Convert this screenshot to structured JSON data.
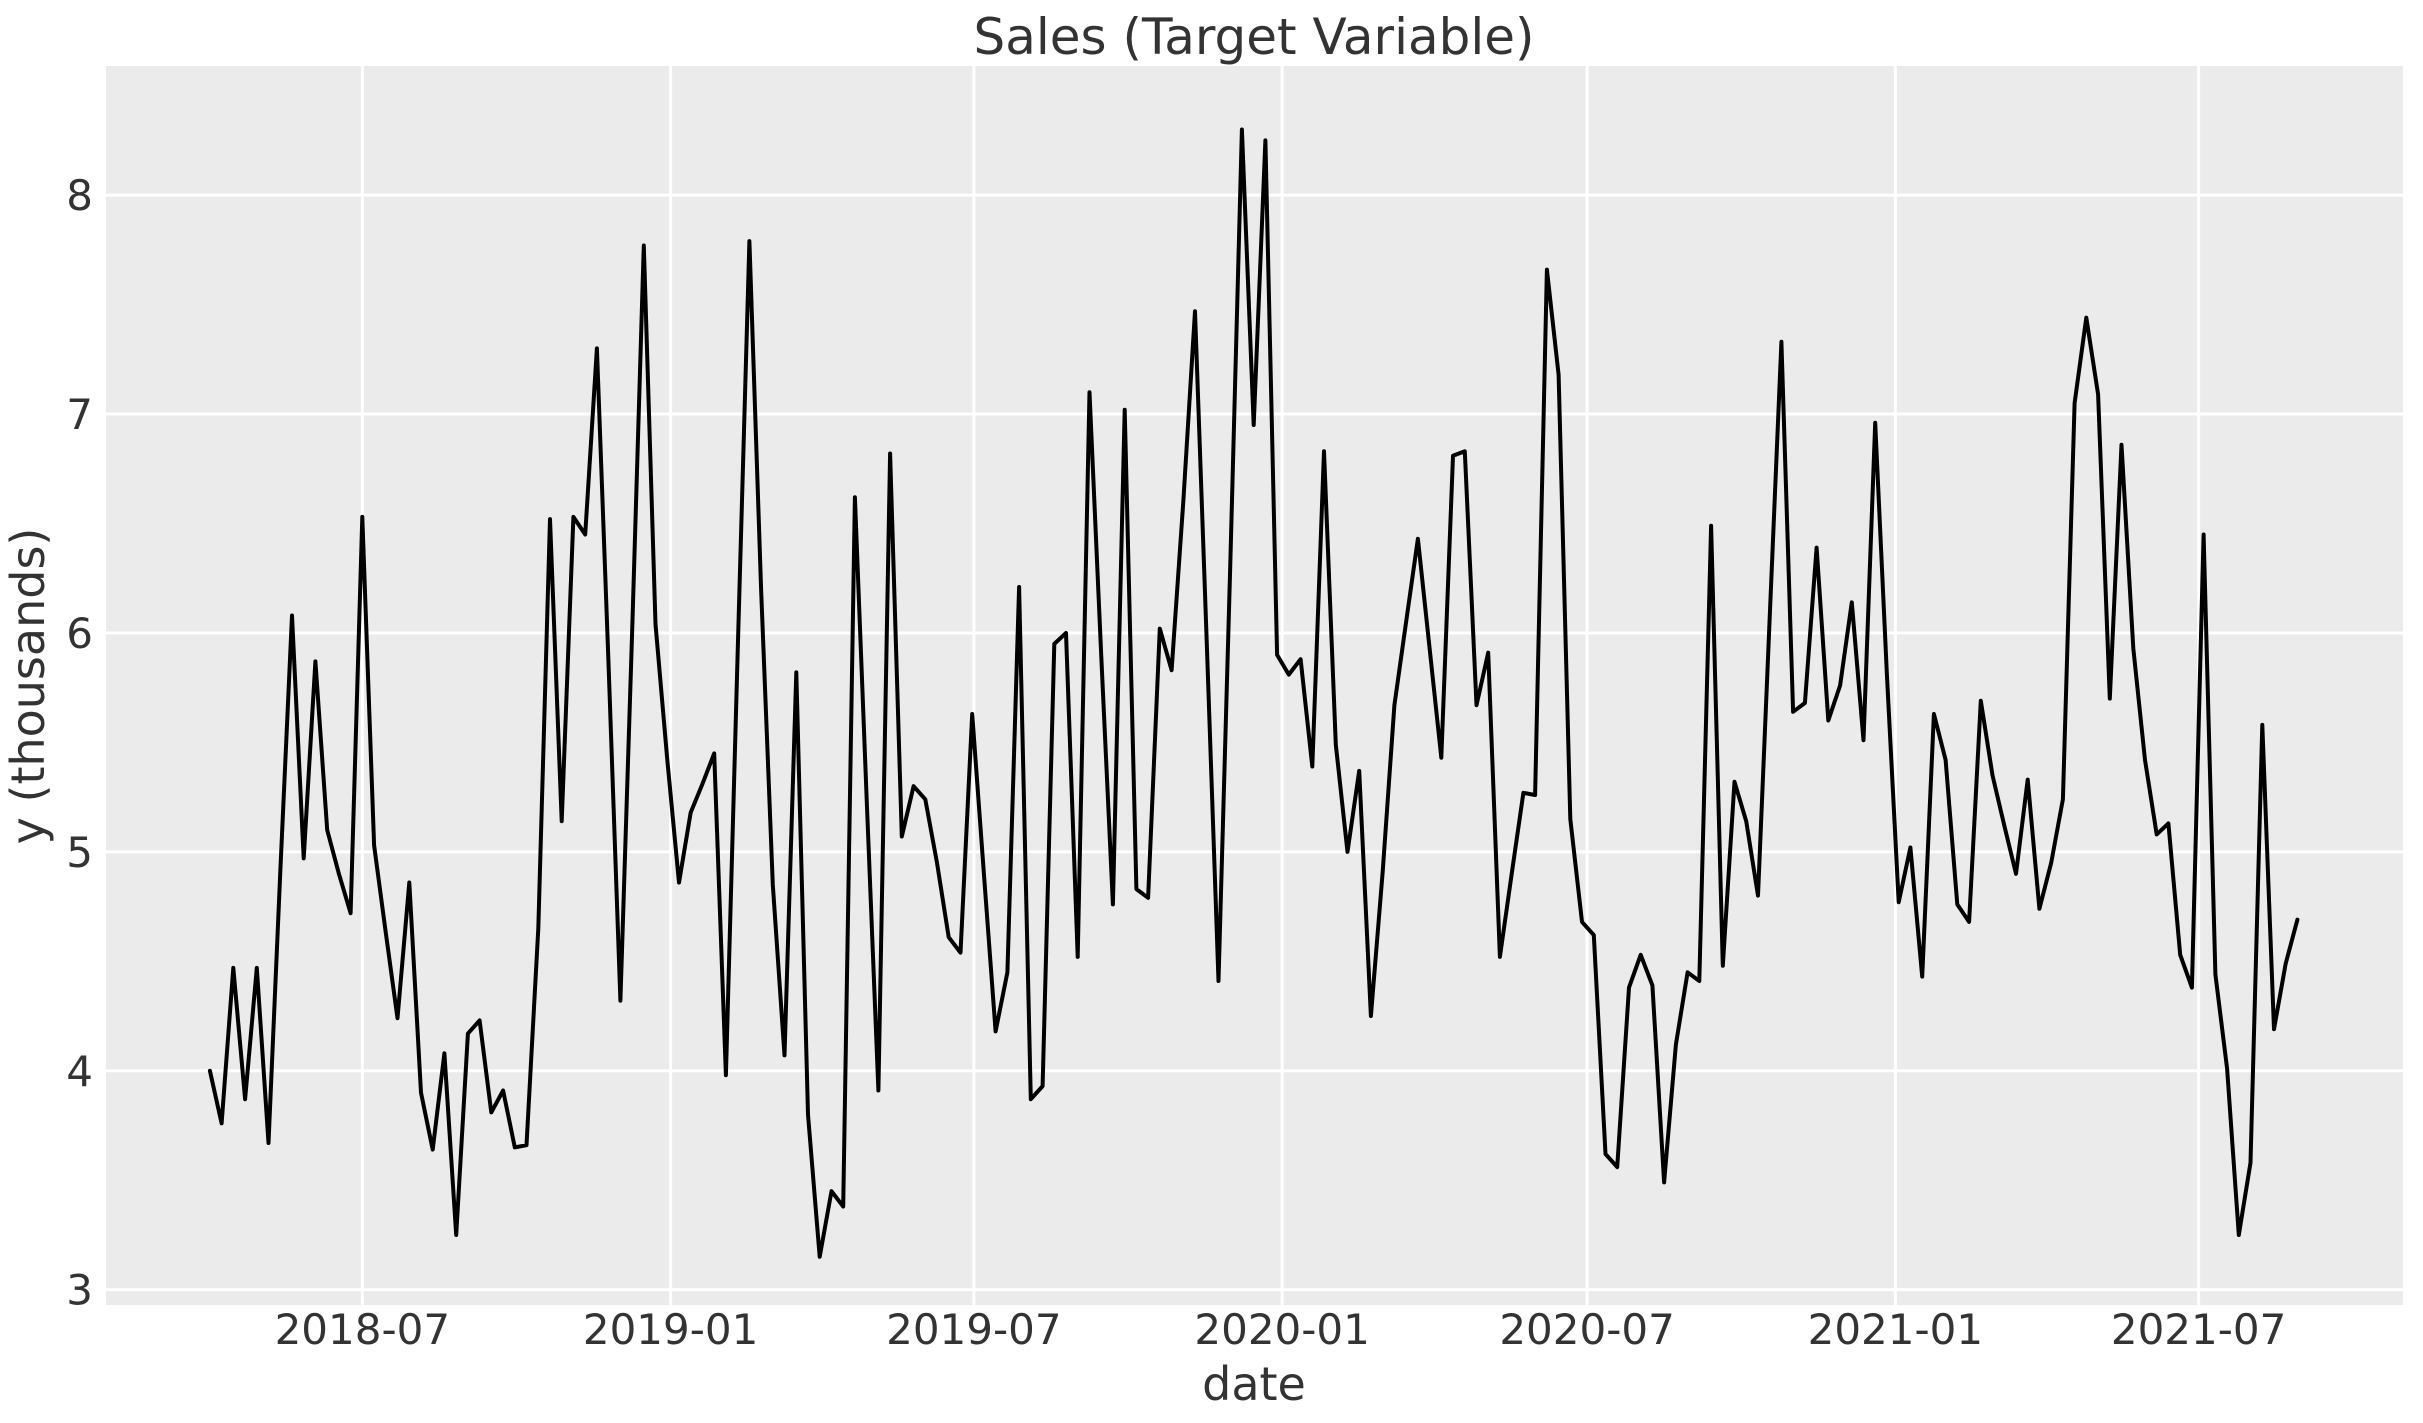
{
  "chart_data": {
    "type": "line",
    "title": "Sales (Target Variable)",
    "xlabel": "date",
    "ylabel": "y (thousands)",
    "grid": true,
    "legend": false,
    "xlim": [
      "2018-01-29",
      "2021-10-31"
    ],
    "ylim": [
      2.93,
      8.59
    ],
    "y_ticks": [
      3,
      4,
      5,
      6,
      7,
      8
    ],
    "x_ticks": [
      {
        "label": "2018-07",
        "date": "2018-07-01"
      },
      {
        "label": "2019-01",
        "date": "2019-01-01"
      },
      {
        "label": "2019-07",
        "date": "2019-07-01"
      },
      {
        "label": "2020-01",
        "date": "2020-01-01"
      },
      {
        "label": "2020-07",
        "date": "2020-07-01"
      },
      {
        "label": "2021-01",
        "date": "2021-01-01"
      },
      {
        "label": "2021-07",
        "date": "2021-07-01"
      }
    ],
    "colors": {
      "figure_bg": "#ffffff",
      "plot_bg": "#ebebeb",
      "grid": "#ffffff",
      "text": "#333333",
      "line": "#000000"
    },
    "series": [
      {
        "name": "sales",
        "frequency": "weekly",
        "dates": [
          "2018-04-01",
          "2018-04-08",
          "2018-04-15",
          "2018-04-22",
          "2018-04-29",
          "2018-05-06",
          "2018-05-13",
          "2018-05-20",
          "2018-05-27",
          "2018-06-03",
          "2018-06-10",
          "2018-06-17",
          "2018-06-24",
          "2018-07-01",
          "2018-07-08",
          "2018-07-15",
          "2018-07-22",
          "2018-07-29",
          "2018-08-05",
          "2018-08-12",
          "2018-08-19",
          "2018-08-26",
          "2018-09-02",
          "2018-09-09",
          "2018-09-16",
          "2018-09-23",
          "2018-09-30",
          "2018-10-07",
          "2018-10-14",
          "2018-10-21",
          "2018-10-28",
          "2018-11-04",
          "2018-11-11",
          "2018-11-18",
          "2018-11-25",
          "2018-12-02",
          "2018-12-09",
          "2018-12-16",
          "2018-12-23",
          "2018-12-30",
          "2019-01-06",
          "2019-01-13",
          "2019-01-20",
          "2019-01-27",
          "2019-02-03",
          "2019-02-10",
          "2019-02-17",
          "2019-02-24",
          "2019-03-03",
          "2019-03-10",
          "2019-03-17",
          "2019-03-24",
          "2019-03-31",
          "2019-04-07",
          "2019-04-14",
          "2019-04-21",
          "2019-04-28",
          "2019-05-05",
          "2019-05-12",
          "2019-05-19",
          "2019-05-26",
          "2019-06-02",
          "2019-06-09",
          "2019-06-16",
          "2019-06-23",
          "2019-06-30",
          "2019-07-07",
          "2019-07-14",
          "2019-07-21",
          "2019-07-28",
          "2019-08-04",
          "2019-08-11",
          "2019-08-18",
          "2019-08-25",
          "2019-09-01",
          "2019-09-08",
          "2019-09-15",
          "2019-09-22",
          "2019-09-29",
          "2019-10-06",
          "2019-10-13",
          "2019-10-20",
          "2019-10-27",
          "2019-11-03",
          "2019-11-10",
          "2019-11-17",
          "2019-11-24",
          "2019-12-01",
          "2019-12-08",
          "2019-12-15",
          "2019-12-22",
          "2019-12-29",
          "2020-01-05",
          "2020-01-12",
          "2020-01-19",
          "2020-01-26",
          "2020-02-02",
          "2020-02-09",
          "2020-02-16",
          "2020-02-23",
          "2020-03-01",
          "2020-03-08",
          "2020-03-15",
          "2020-03-22",
          "2020-03-29",
          "2020-04-05",
          "2020-04-12",
          "2020-04-19",
          "2020-04-26",
          "2020-05-03",
          "2020-05-10",
          "2020-05-17",
          "2020-05-24",
          "2020-05-31",
          "2020-06-07",
          "2020-06-14",
          "2020-06-21",
          "2020-06-28",
          "2020-07-05",
          "2020-07-12",
          "2020-07-19",
          "2020-07-26",
          "2020-08-02",
          "2020-08-09",
          "2020-08-16",
          "2020-08-23",
          "2020-08-30",
          "2020-09-06",
          "2020-09-13",
          "2020-09-20",
          "2020-09-27",
          "2020-10-04",
          "2020-10-11",
          "2020-10-18",
          "2020-10-25",
          "2020-11-01",
          "2020-11-08",
          "2020-11-15",
          "2020-11-22",
          "2020-11-29",
          "2020-12-06",
          "2020-12-13",
          "2020-12-20",
          "2020-12-27",
          "2021-01-03",
          "2021-01-10",
          "2021-01-17",
          "2021-01-24",
          "2021-01-31",
          "2021-02-07",
          "2021-02-14",
          "2021-02-21",
          "2021-02-28",
          "2021-03-07",
          "2021-03-14",
          "2021-03-21",
          "2021-03-28",
          "2021-04-04",
          "2021-04-11",
          "2021-04-18",
          "2021-04-25",
          "2021-05-02",
          "2021-05-09",
          "2021-05-16",
          "2021-05-23",
          "2021-05-30",
          "2021-06-06",
          "2021-06-13",
          "2021-06-20",
          "2021-06-27",
          "2021-07-04",
          "2021-07-11",
          "2021-07-18",
          "2021-07-25",
          "2021-08-01",
          "2021-08-08",
          "2021-08-15",
          "2021-08-22",
          "2021-08-29"
        ],
        "values": [
          4.0,
          3.76,
          4.47,
          3.87,
          4.47,
          3.67,
          4.9,
          6.08,
          4.97,
          5.87,
          5.1,
          4.9,
          4.72,
          6.53,
          5.03,
          4.63,
          4.24,
          4.86,
          3.9,
          3.64,
          4.08,
          3.25,
          4.17,
          4.23,
          3.81,
          3.91,
          3.65,
          3.66,
          4.65,
          6.52,
          5.14,
          6.53,
          6.45,
          7.3,
          5.85,
          4.32,
          6.0,
          7.77,
          6.04,
          5.42,
          4.86,
          5.18,
          5.31,
          5.45,
          3.98,
          5.9,
          7.79,
          6.2,
          4.85,
          4.07,
          5.82,
          3.8,
          3.15,
          3.45,
          3.38,
          6.62,
          5.25,
          3.91,
          6.82,
          5.07,
          5.3,
          5.24,
          4.95,
          4.61,
          4.54,
          5.63,
          4.9,
          4.18,
          4.45,
          6.21,
          3.87,
          3.93,
          5.95,
          6.0,
          4.52,
          7.1,
          5.9,
          4.76,
          7.02,
          4.83,
          4.79,
          6.02,
          5.83,
          6.6,
          7.47,
          5.95,
          4.41,
          6.3,
          8.3,
          6.95,
          8.25,
          5.9,
          5.81,
          5.88,
          5.39,
          6.83,
          5.49,
          5.0,
          5.37,
          4.25,
          4.91,
          5.67,
          6.05,
          6.43,
          5.93,
          5.43,
          6.81,
          6.83,
          5.67,
          5.91,
          4.52,
          4.9,
          5.27,
          5.26,
          7.66,
          7.18,
          5.15,
          4.68,
          4.62,
          3.62,
          3.56,
          4.38,
          4.53,
          4.39,
          3.49,
          4.12,
          4.45,
          4.41,
          6.49,
          4.48,
          5.32,
          5.14,
          4.8,
          6.07,
          7.33,
          5.64,
          5.68,
          6.39,
          5.6,
          5.76,
          6.14,
          5.51,
          6.96,
          5.8,
          4.77,
          5.02,
          4.43,
          5.63,
          5.42,
          4.76,
          4.68,
          5.69,
          5.35,
          5.12,
          4.9,
          5.33,
          4.74,
          4.95,
          5.24,
          7.05,
          7.44,
          7.09,
          5.7,
          6.86,
          5.93,
          5.42,
          5.08,
          5.13,
          4.53,
          4.38,
          6.45,
          4.44,
          4.01,
          3.25,
          3.58,
          5.58,
          4.19,
          4.49,
          4.69
        ]
      }
    ]
  }
}
